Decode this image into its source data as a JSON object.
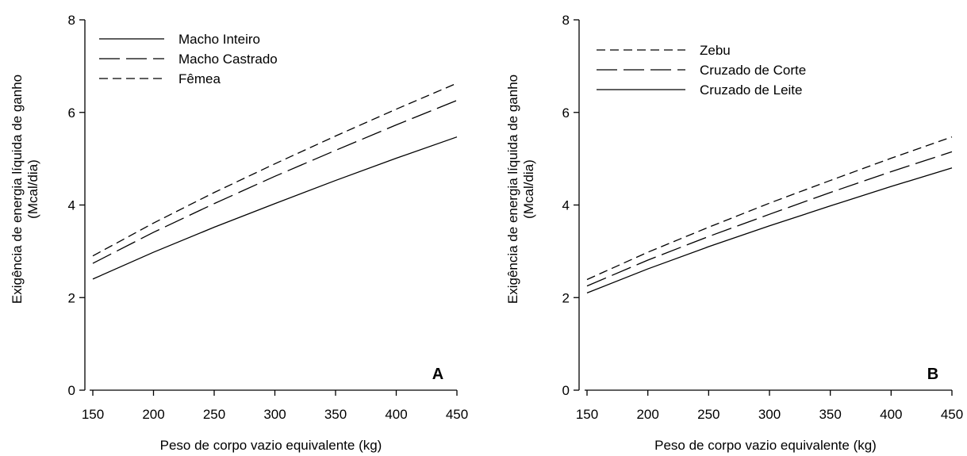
{
  "chart_data": [
    {
      "type": "line",
      "panel_label": "A",
      "xlabel": "Peso de corpo vazio equivalente (kg)",
      "ylabel": [
        "Exigência de energia líquida de ganho",
        "(Mcal/dia)"
      ],
      "xlim": [
        150,
        450
      ],
      "ylim": [
        0,
        8
      ],
      "xticks": [
        150,
        200,
        250,
        300,
        350,
        400,
        450
      ],
      "yticks": [
        0,
        2,
        4,
        6,
        8
      ],
      "legend_position": "top-left",
      "grid": false,
      "x": [
        150,
        200,
        250,
        300,
        350,
        400,
        450
      ],
      "series": [
        {
          "name": "Macho Inteiro",
          "dash": "solid",
          "values": [
            2.4,
            2.98,
            3.52,
            4.03,
            4.53,
            5.01,
            5.47
          ]
        },
        {
          "name": "Macho Castrado",
          "dash": "long-dash",
          "values": [
            2.74,
            3.41,
            4.03,
            4.62,
            5.18,
            5.73,
            6.26
          ]
        },
        {
          "name": "Fêmea",
          "dash": "short-dash",
          "values": [
            2.9,
            3.61,
            4.27,
            4.89,
            5.49,
            6.07,
            6.63
          ]
        }
      ]
    },
    {
      "type": "line",
      "panel_label": "B",
      "xlabel": "Peso de corpo vazio equivalente (kg)",
      "ylabel": [
        "Exigência de energia líquida de ganho",
        "(Mcal/dia)"
      ],
      "xlim": [
        150,
        450
      ],
      "ylim": [
        0,
        8
      ],
      "xticks": [
        150,
        200,
        250,
        300,
        350,
        400,
        450
      ],
      "yticks": [
        0,
        2,
        4,
        6,
        8
      ],
      "legend_position": "top-left",
      "grid": false,
      "x": [
        150,
        200,
        250,
        300,
        350,
        400,
        450
      ],
      "series": [
        {
          "name": "Zebu",
          "dash": "short-dash",
          "values": [
            2.39,
            2.98,
            3.52,
            4.04,
            4.53,
            5.01,
            5.47
          ]
        },
        {
          "name": "Cruzado de Corte",
          "dash": "long-dash",
          "values": [
            2.25,
            2.81,
            3.32,
            3.8,
            4.27,
            4.72,
            5.15
          ]
        },
        {
          "name": "Cruzado de Leite",
          "dash": "solid",
          "values": [
            2.1,
            2.62,
            3.1,
            3.55,
            3.98,
            4.4,
            4.8
          ]
        }
      ]
    }
  ]
}
